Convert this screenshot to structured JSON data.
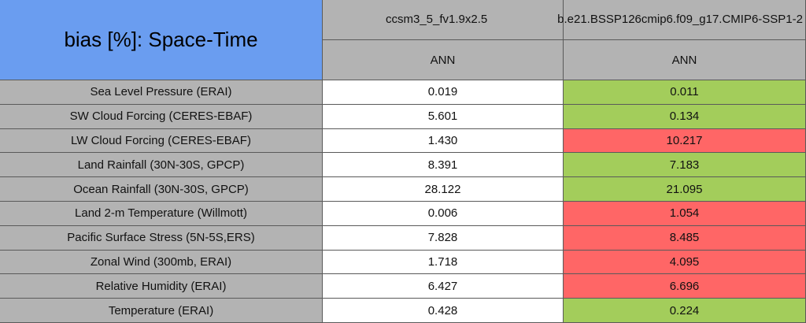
{
  "header": {
    "title": "bias [%]: Space-Time",
    "columns": [
      {
        "name": "ccsm3_5_fv1.9x2.5",
        "period": "ANN"
      },
      {
        "name": "b.e21.BSSP126cmip6.f09_g17.CMIP6-SSP1-2",
        "period": "ANN"
      }
    ]
  },
  "table": {
    "rows": [
      {
        "label": "Sea Level Pressure (ERAI)",
        "values": [
          "0.019",
          "0.011"
        ],
        "colors": [
          "#ffffff",
          "#a3cd5b"
        ]
      },
      {
        "label": "SW Cloud Forcing (CERES-EBAF)",
        "values": [
          "5.601",
          "0.134"
        ],
        "colors": [
          "#ffffff",
          "#a3cd5b"
        ]
      },
      {
        "label": "LW Cloud Forcing (CERES-EBAF)",
        "values": [
          "1.430",
          "10.217"
        ],
        "colors": [
          "#ffffff",
          "#ff6666"
        ]
      },
      {
        "label": "Land Rainfall (30N-30S, GPCP)",
        "values": [
          "8.391",
          "7.183"
        ],
        "colors": [
          "#ffffff",
          "#a3cd5b"
        ]
      },
      {
        "label": "Ocean Rainfall (30N-30S, GPCP)",
        "values": [
          "28.122",
          "21.095"
        ],
        "colors": [
          "#ffffff",
          "#a3cd5b"
        ]
      },
      {
        "label": "Land 2-m Temperature (Willmott)",
        "values": [
          "0.006",
          "1.054"
        ],
        "colors": [
          "#ffffff",
          "#ff6666"
        ]
      },
      {
        "label": "Pacific Surface Stress (5N-5S,ERS)",
        "values": [
          "7.828",
          "8.485"
        ],
        "colors": [
          "#ffffff",
          "#ff6666"
        ]
      },
      {
        "label": "Zonal Wind (300mb, ERAI)",
        "values": [
          "1.718",
          "4.095"
        ],
        "colors": [
          "#ffffff",
          "#ff6666"
        ]
      },
      {
        "label": "Relative Humidity (ERAI)",
        "values": [
          "6.427",
          "6.696"
        ],
        "colors": [
          "#ffffff",
          "#ff6666"
        ]
      },
      {
        "label": "Temperature (ERAI)",
        "values": [
          "0.428",
          "0.224"
        ],
        "colors": [
          "#ffffff",
          "#a3cd5b"
        ]
      }
    ]
  }
}
